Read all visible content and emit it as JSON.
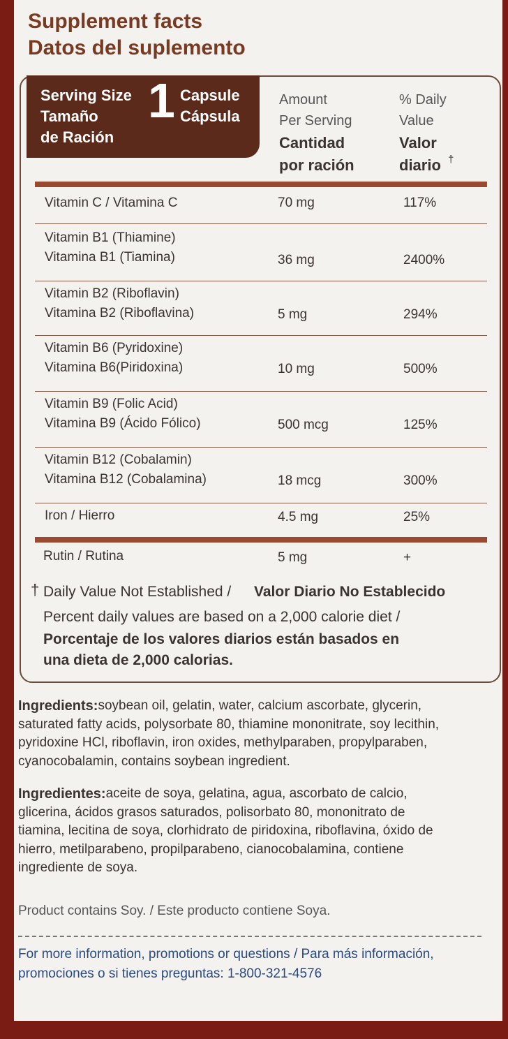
{
  "header": {
    "title_en": "Supplement facts",
    "title_es": "Datos del suplemento"
  },
  "serving": {
    "label_lines": [
      "Serving Size",
      "Tamaño",
      "de Ración"
    ],
    "amount": "1",
    "unit_lines": [
      "Capsule",
      "Cápsula"
    ]
  },
  "columns": {
    "amount_lines": [
      "Amount",
      "Per Serving",
      "Cantidad",
      "por ración"
    ],
    "dv_lines": [
      "% Daily",
      "Value",
      "Valor",
      "diario"
    ],
    "dv_mark": "†"
  },
  "rows": [
    {
      "name_lines": [
        "Vitamin C / Vitamina C"
      ],
      "amount": "70 mg",
      "dv": "117%"
    },
    {
      "name_lines": [
        "Vitamin B1 (Thiamine)",
        "Vitamina B1 (Tiamina)"
      ],
      "amount": "36 mg",
      "dv": "2400%"
    },
    {
      "name_lines": [
        "Vitamin B2 (Riboflavin)",
        "Vitamina B2 (Riboflavina)"
      ],
      "amount": "5 mg",
      "dv": "294%"
    },
    {
      "name_lines": [
        "Vitamin B6 (Pyridoxine)",
        "Vitamina B6(Piridoxina)"
      ],
      "amount": "10 mg",
      "dv": "500%"
    },
    {
      "name_lines": [
        "Vitamin B9 (Folic Acid)",
        "Vitamina B9 (Ácido Fólico)"
      ],
      "amount": "500 mcg",
      "dv": "125%"
    },
    {
      "name_lines": [
        "Vitamin B12 (Cobalamin)",
        "Vitamina B12 (Cobalamina)"
      ],
      "amount": "18 mcg",
      "dv": "300%"
    },
    {
      "name_lines": [
        "Iron / Hierro"
      ],
      "amount": "4.5 mg",
      "dv": "25%"
    },
    {
      "name_lines": [
        "Rutin / Rutina"
      ],
      "amount": "5 mg",
      "dv": "+"
    }
  ],
  "footnote": {
    "mark": "†",
    "dv_en": "Daily Value Not Established / ",
    "dv_es": "Valor Diario No Establecido",
    "percent_en": "Percent daily values are based on a 2,000 calorie diet /",
    "percent_es_lines": [
      "Porcentaje de los valores diarios están basados en",
      "una dieta de 2,000 calorias."
    ]
  },
  "ingredients": {
    "label_en": "Ingredients:",
    "lines_en": [
      " soybean oil, gelatin, water, calcium ascorbate, glycerin,",
      "saturated fatty acids, polysorbate 80, thiamine mononitrate, soy lecithin,",
      "pyridoxine HCl, riboflavin, iron oxides, methylparaben, propylparaben,",
      "cyanocobalamin, contains soybean ingredient."
    ],
    "label_es": "Ingredientes:",
    "lines_es": [
      " aceite de soya, gelatina, agua, ascorbato de calcio,",
      "glicerina, ácidos grasos saturados, polisorbato 80, mononitrato de",
      "tiamina, lecitina de soya, clorhidrato de piridoxina, riboflavina, óxido de",
      "hierro, metilparabeno, propilparabeno, cianocobalamina, contiene",
      "ingrediente de soya."
    ],
    "soy_note": "Product contains Soy. / Este producto contiene Soya."
  },
  "contact": {
    "lines": [
      "For more information, promotions or questions / Para más información,",
      "promociones o si tienes preguntas: 1-800-321-4576"
    ]
  }
}
